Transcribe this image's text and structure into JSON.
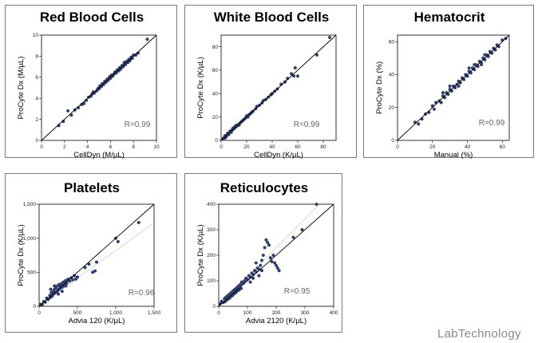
{
  "chart_data": [
    {
      "type": "scatter",
      "title": "Red Blood Cells",
      "xlabel": "CellDyn (M/µL)",
      "ylabel": "ProCyte Dx (M/µL)",
      "xlim": [
        0,
        10
      ],
      "ylim": [
        0,
        10
      ],
      "xticks": [
        0,
        2,
        4,
        6,
        8,
        10
      ],
      "yticks": [
        0,
        2,
        4,
        6,
        8,
        10
      ],
      "xticklabels": [
        "0",
        "2",
        "4",
        "6",
        "8",
        "10"
      ],
      "yticklabels": [
        "0",
        "2",
        "4",
        "6",
        "8",
        "10"
      ],
      "annotation": "R=0.99",
      "reference_line": [
        [
          0,
          0
        ],
        [
          10,
          10
        ]
      ],
      "fit_line": [
        [
          0,
          0
        ],
        [
          10,
          10
        ]
      ],
      "points": [
        [
          1.5,
          1.4
        ],
        [
          1.9,
          1.8
        ],
        [
          2.3,
          2.8
        ],
        [
          2.6,
          2.4
        ],
        [
          2.9,
          2.9
        ],
        [
          3.2,
          3.1
        ],
        [
          3.5,
          3.4
        ],
        [
          3.7,
          3.5
        ],
        [
          3.9,
          3.8
        ],
        [
          4.1,
          4.1
        ],
        [
          4.3,
          4.2
        ],
        [
          4.4,
          4.4
        ],
        [
          4.6,
          4.5
        ],
        [
          4.8,
          4.7
        ],
        [
          4.9,
          4.9
        ],
        [
          5.0,
          5.0
        ],
        [
          5.1,
          5.2
        ],
        [
          5.2,
          5.1
        ],
        [
          5.3,
          5.4
        ],
        [
          5.4,
          5.3
        ],
        [
          5.5,
          5.6
        ],
        [
          5.6,
          5.5
        ],
        [
          5.7,
          5.8
        ],
        [
          5.8,
          5.7
        ],
        [
          5.9,
          6.0
        ],
        [
          6.0,
          5.9
        ],
        [
          6.1,
          6.2
        ],
        [
          6.2,
          6.1
        ],
        [
          6.3,
          6.3
        ],
        [
          6.4,
          6.5
        ],
        [
          6.5,
          6.4
        ],
        [
          6.6,
          6.7
        ],
        [
          6.7,
          6.6
        ],
        [
          6.8,
          6.9
        ],
        [
          6.9,
          6.8
        ],
        [
          7.0,
          7.1
        ],
        [
          7.1,
          7.0
        ],
        [
          7.2,
          7.3
        ],
        [
          7.3,
          7.2
        ],
        [
          7.4,
          7.5
        ],
        [
          7.5,
          7.4
        ],
        [
          7.6,
          7.7
        ],
        [
          7.7,
          7.6
        ],
        [
          7.8,
          7.9
        ],
        [
          7.9,
          7.8
        ],
        [
          8.0,
          8.1
        ],
        [
          8.2,
          8.1
        ],
        [
          8.4,
          8.3
        ],
        [
          6.0,
          6.1
        ],
        [
          5.0,
          4.9
        ],
        [
          4.5,
          4.6
        ],
        [
          6.8,
          6.7
        ],
        [
          7.2,
          7.4
        ],
        [
          7.6,
          7.5
        ],
        [
          9.2,
          9.6
        ]
      ]
    },
    {
      "type": "scatter",
      "title": "White Blood Cells",
      "xlabel": "CellDyn (K/µL)",
      "ylabel": "ProCyte Dx (K/µL)",
      "xlim": [
        0,
        90
      ],
      "ylim": [
        0,
        90
      ],
      "xticks": [
        0,
        20,
        40,
        60,
        80
      ],
      "yticks": [
        0,
        20,
        40,
        60,
        80
      ],
      "xticklabels": [
        "0",
        "20",
        "40",
        "60",
        "80"
      ],
      "yticklabels": [
        "0",
        "20",
        "40",
        "60",
        "80"
      ],
      "annotation": "R=0.99",
      "reference_line": [
        [
          0,
          0
        ],
        [
          90,
          90
        ]
      ],
      "fit_line": [
        [
          0,
          0
        ],
        [
          90,
          90
        ]
      ],
      "points": [
        [
          1,
          1
        ],
        [
          2,
          2
        ],
        [
          3,
          2
        ],
        [
          3,
          4
        ],
        [
          4,
          4
        ],
        [
          4,
          3
        ],
        [
          5,
          5
        ],
        [
          5,
          6
        ],
        [
          6,
          6
        ],
        [
          6,
          5
        ],
        [
          7,
          7
        ],
        [
          7,
          8
        ],
        [
          8,
          8
        ],
        [
          8,
          7
        ],
        [
          9,
          9
        ],
        [
          9,
          10
        ],
        [
          10,
          10
        ],
        [
          10,
          11
        ],
        [
          11,
          11
        ],
        [
          11,
          12
        ],
        [
          12,
          12
        ],
        [
          12,
          13
        ],
        [
          13,
          13
        ],
        [
          14,
          14
        ],
        [
          14,
          13
        ],
        [
          15,
          15
        ],
        [
          16,
          16
        ],
        [
          17,
          17
        ],
        [
          18,
          18
        ],
        [
          19,
          19
        ],
        [
          20,
          21
        ],
        [
          21,
          20
        ],
        [
          22,
          22
        ],
        [
          23,
          23
        ],
        [
          24,
          24
        ],
        [
          25,
          25
        ],
        [
          27,
          27
        ],
        [
          28,
          29
        ],
        [
          30,
          30
        ],
        [
          32,
          32
        ],
        [
          33,
          34
        ],
        [
          35,
          35
        ],
        [
          37,
          37
        ],
        [
          39,
          39
        ],
        [
          40,
          40
        ],
        [
          42,
          42
        ],
        [
          44,
          44
        ],
        [
          47,
          48
        ],
        [
          50,
          50
        ],
        [
          52,
          53
        ],
        [
          55,
          57
        ],
        [
          57,
          55
        ],
        [
          58,
          62
        ],
        [
          60,
          55
        ],
        [
          75,
          73
        ],
        [
          85,
          88
        ]
      ]
    },
    {
      "type": "scatter",
      "title": "Hematocrit",
      "xlabel": "Manual (%)",
      "ylabel": "ProCyte Dx (%)",
      "xlim": [
        0,
        64
      ],
      "ylim": [
        0,
        64
      ],
      "xticks": [
        0,
        20,
        40,
        60
      ],
      "yticks": [
        0,
        20,
        40,
        60
      ],
      "xticklabels": [
        "0",
        "20",
        "40",
        "60"
      ],
      "yticklabels": [
        "0",
        "20",
        "40",
        "60"
      ],
      "annotation": "R=0.99",
      "reference_line": [
        [
          0,
          0
        ],
        [
          64,
          64
        ]
      ],
      "fit_line": [
        [
          0,
          0
        ],
        [
          64,
          64
        ]
      ],
      "points": [
        [
          10,
          11
        ],
        [
          12,
          10
        ],
        [
          14,
          13
        ],
        [
          16,
          16
        ],
        [
          18,
          17
        ],
        [
          20,
          21
        ],
        [
          21,
          19
        ],
        [
          22,
          23
        ],
        [
          24,
          24
        ],
        [
          25,
          23
        ],
        [
          26,
          27
        ],
        [
          27,
          26
        ],
        [
          28,
          29
        ],
        [
          29,
          28
        ],
        [
          30,
          31
        ],
        [
          31,
          30
        ],
        [
          32,
          33
        ],
        [
          33,
          32
        ],
        [
          34,
          34
        ],
        [
          35,
          36
        ],
        [
          36,
          35
        ],
        [
          37,
          38
        ],
        [
          38,
          37
        ],
        [
          39,
          40
        ],
        [
          40,
          39
        ],
        [
          41,
          42
        ],
        [
          42,
          41
        ],
        [
          43,
          44
        ],
        [
          44,
          43
        ],
        [
          45,
          46
        ],
        [
          46,
          45
        ],
        [
          47,
          48
        ],
        [
          48,
          47
        ],
        [
          49,
          50
        ],
        [
          50,
          49
        ],
        [
          51,
          52
        ],
        [
          52,
          51
        ],
        [
          53,
          54
        ],
        [
          54,
          53
        ],
        [
          55,
          56
        ],
        [
          56,
          55
        ],
        [
          57,
          58
        ],
        [
          58,
          57
        ],
        [
          41,
          44
        ],
        [
          44,
          46
        ],
        [
          48,
          46
        ],
        [
          50,
          52
        ],
        [
          35,
          33
        ],
        [
          30,
          33
        ],
        [
          26,
          29
        ],
        [
          60,
          61
        ],
        [
          62,
          62
        ]
      ]
    },
    {
      "type": "scatter",
      "title": "Platelets",
      "xlabel": "Advia 120 (K/µL)",
      "ylabel": "ProCyte Dx (K/µL)",
      "xlim": [
        0,
        1500
      ],
      "ylim": [
        0,
        1500
      ],
      "xticks": [
        0,
        500,
        1000,
        1500
      ],
      "yticks": [
        0,
        500,
        1000,
        1500
      ],
      "xticklabels": [
        "0",
        "500",
        "1,000",
        "1,500"
      ],
      "yticklabels": [
        "0",
        "500",
        "1,000",
        "1,500"
      ],
      "annotation": "R=0.96",
      "reference_line": [
        [
          0,
          0
        ],
        [
          1500,
          1500
        ]
      ],
      "fit_line": [
        [
          0,
          0
        ],
        [
          1500,
          1230
        ]
      ],
      "points": [
        [
          20,
          30
        ],
        [
          40,
          20
        ],
        [
          60,
          70
        ],
        [
          80,
          60
        ],
        [
          100,
          120
        ],
        [
          120,
          100
        ],
        [
          140,
          160
        ],
        [
          150,
          130
        ],
        [
          160,
          200
        ],
        [
          170,
          150
        ],
        [
          180,
          220
        ],
        [
          190,
          180
        ],
        [
          200,
          250
        ],
        [
          210,
          200
        ],
        [
          220,
          270
        ],
        [
          230,
          210
        ],
        [
          240,
          300
        ],
        [
          250,
          240
        ],
        [
          260,
          320
        ],
        [
          270,
          260
        ],
        [
          280,
          290
        ],
        [
          290,
          330
        ],
        [
          300,
          280
        ],
        [
          310,
          350
        ],
        [
          320,
          300
        ],
        [
          330,
          360
        ],
        [
          340,
          320
        ],
        [
          350,
          380
        ],
        [
          360,
          340
        ],
        [
          380,
          400
        ],
        [
          400,
          370
        ],
        [
          420,
          420
        ],
        [
          440,
          390
        ],
        [
          460,
          450
        ],
        [
          480,
          400
        ],
        [
          500,
          430
        ],
        [
          150,
          250
        ],
        [
          200,
          300
        ],
        [
          250,
          180
        ],
        [
          300,
          220
        ],
        [
          350,
          300
        ],
        [
          600,
          570
        ],
        [
          650,
          620
        ],
        [
          700,
          500
        ],
        [
          730,
          520
        ],
        [
          750,
          650
        ],
        [
          1000,
          1000
        ],
        [
          1030,
          950
        ],
        [
          1300,
          1230
        ]
      ]
    },
    {
      "type": "scatter",
      "title": "Reticulocytes",
      "xlabel": "Advia 2120 (K/µL)",
      "ylabel": "ProCyte Dx (K/µL)",
      "xlim": [
        0,
        400
      ],
      "ylim": [
        0,
        400
      ],
      "xticks": [
        0,
        100,
        200,
        300,
        400
      ],
      "yticks": [
        0,
        100,
        200,
        300,
        400
      ],
      "xticklabels": [
        "0",
        "100",
        "200",
        "300",
        "400"
      ],
      "yticklabels": [
        "0",
        "100",
        "200",
        "300",
        "400"
      ],
      "annotation": "R=0.95",
      "reference_line": [
        [
          0,
          0
        ],
        [
          400,
          400
        ]
      ],
      "fit_line": [
        [
          0,
          0
        ],
        [
          350,
          400
        ]
      ],
      "points": [
        [
          5,
          10
        ],
        [
          10,
          20
        ],
        [
          15,
          15
        ],
        [
          20,
          30
        ],
        [
          22,
          18
        ],
        [
          25,
          35
        ],
        [
          28,
          25
        ],
        [
          30,
          40
        ],
        [
          32,
          28
        ],
        [
          35,
          45
        ],
        [
          38,
          32
        ],
        [
          40,
          50
        ],
        [
          42,
          38
        ],
        [
          45,
          55
        ],
        [
          48,
          42
        ],
        [
          50,
          60
        ],
        [
          52,
          48
        ],
        [
          55,
          65
        ],
        [
          58,
          52
        ],
        [
          60,
          70
        ],
        [
          62,
          58
        ],
        [
          65,
          75
        ],
        [
          68,
          62
        ],
        [
          70,
          80
        ],
        [
          72,
          66
        ],
        [
          75,
          85
        ],
        [
          78,
          70
        ],
        [
          80,
          95
        ],
        [
          85,
          90
        ],
        [
          90,
          100
        ],
        [
          95,
          110
        ],
        [
          100,
          105
        ],
        [
          105,
          120
        ],
        [
          110,
          115
        ],
        [
          115,
          130
        ],
        [
          120,
          125
        ],
        [
          125,
          140
        ],
        [
          130,
          135
        ],
        [
          135,
          150
        ],
        [
          140,
          145
        ],
        [
          145,
          160
        ],
        [
          150,
          180
        ],
        [
          155,
          200
        ],
        [
          160,
          230
        ],
        [
          165,
          260
        ],
        [
          170,
          250
        ],
        [
          175,
          240
        ],
        [
          180,
          190
        ],
        [
          185,
          175
        ],
        [
          190,
          200
        ],
        [
          195,
          170
        ],
        [
          200,
          160
        ],
        [
          205,
          150
        ],
        [
          210,
          140
        ],
        [
          150,
          140
        ],
        [
          140,
          120
        ],
        [
          120,
          110
        ],
        [
          110,
          95
        ],
        [
          130,
          170
        ],
        [
          260,
          270
        ],
        [
          290,
          300
        ],
        [
          340,
          400
        ]
      ]
    }
  ],
  "watermark": "LabTechnology"
}
